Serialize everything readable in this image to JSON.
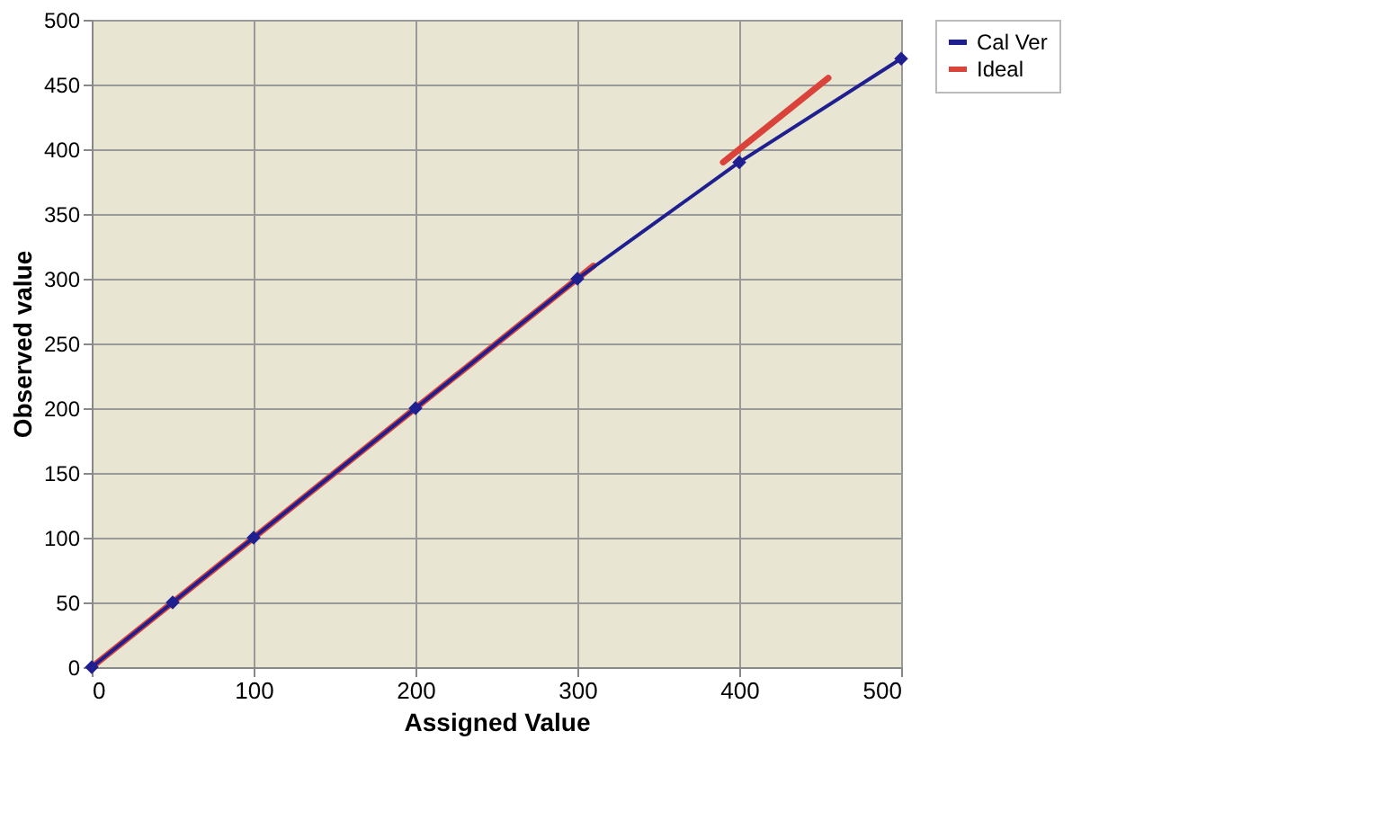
{
  "chart_data": {
    "type": "line",
    "xlabel": "Assigned Value",
    "ylabel": "Observed value",
    "xlim": [
      0,
      500
    ],
    "xticks": [
      0,
      100,
      200,
      300,
      400,
      500
    ],
    "ylim": [
      0,
      500
    ],
    "yticks": [
      0,
      50,
      100,
      150,
      200,
      250,
      300,
      350,
      400,
      450,
      500
    ],
    "grid": true,
    "legend": "right",
    "series": [
      {
        "name": "Cal Ver",
        "color": "#1f1f8f",
        "marker": "diamond",
        "x": [
          0,
          50,
          100,
          200,
          300,
          400,
          500
        ],
        "values": [
          0,
          50,
          100,
          200,
          300,
          390,
          470
        ]
      },
      {
        "name": "Ideal",
        "color": "#d9433a",
        "marker": "none",
        "x": [
          0,
          310,
          350,
          390,
          455
        ],
        "values": [
          0,
          310,
          null,
          390,
          455
        ]
      }
    ]
  }
}
